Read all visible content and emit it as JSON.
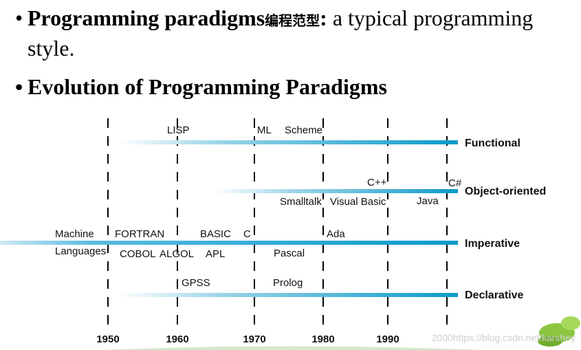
{
  "bullets": {
    "b1_term": "Programming paradigms",
    "b1_cjk": "编程范型",
    "b1_rest": ": a typical programming",
    "b1_rest2": "style.",
    "b2": "Evolution of Programming Paradigms"
  },
  "timeline": {
    "years": [
      "1950",
      "1960",
      "1970",
      "1980",
      "1990",
      "2000"
    ],
    "rows": [
      {
        "name": "Functional",
        "labels_above": [
          "LISP",
          "ML",
          "Scheme"
        ],
        "labels_below": []
      },
      {
        "name": "Object-oriented",
        "labels_above": [
          "C++",
          "C#"
        ],
        "labels_below": [
          "Smalltalk",
          "Visual Basic",
          "Java"
        ]
      },
      {
        "name": "Imperative",
        "labels_above": [
          "Machine",
          "FORTRAN",
          "BASIC",
          "C",
          "Ada"
        ],
        "labels_below": [
          "Languages",
          "COBOL",
          "ALGOL",
          "APL",
          "Pascal"
        ]
      },
      {
        "name": "Declarative",
        "labels_above": [
          "GPSS",
          "Prolog"
        ],
        "labels_below": []
      }
    ]
  },
  "colors": {
    "bar": "#0a9ac9",
    "dash": "#000000"
  },
  "watermark": "2000https://blog.csdn.net/karshey"
}
